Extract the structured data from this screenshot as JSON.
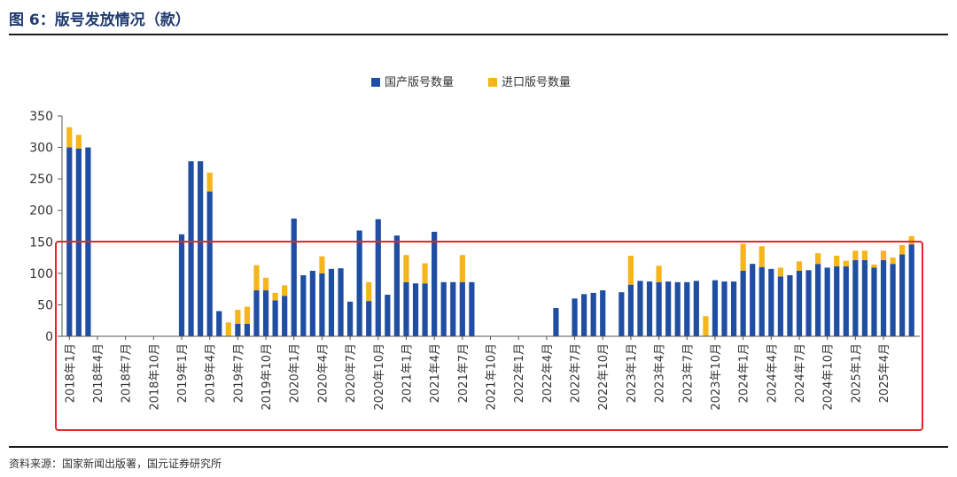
{
  "figure_title": "图 6：版号发放情况（款）",
  "source_text": "资料来源：国家新闻出版署，国元证券研究所",
  "colors": {
    "domestic": "#1f4ea3",
    "imported": "#f5b51b",
    "highlight": "#e3262b",
    "axis": "#555555"
  },
  "chart_data": {
    "type": "bar",
    "stacked": true,
    "ylim": [
      0,
      350
    ],
    "yticks": [
      0,
      50,
      100,
      150,
      200,
      250,
      300,
      350
    ],
    "legend_position": "top-center",
    "grid": false,
    "tick_labels": [
      "2018年1月",
      "2018年4月",
      "2018年7月",
      "2018年10月",
      "2019年1月",
      "2019年4月",
      "2019年7月",
      "2019年10月",
      "2020年1月",
      "2020年4月",
      "2020年7月",
      "2020年10月",
      "2021年1月",
      "2021年4月",
      "2021年7月",
      "2021年10月",
      "2022年1月",
      "2022年4月",
      "2022年7月",
      "2022年10月",
      "2023年1月",
      "2023年4月",
      "2023年7月",
      "2023年10月",
      "2024年1月",
      "2024年4月",
      "2024年7月",
      "2024年10月",
      "2025年1月",
      "2025年4月"
    ],
    "series": [
      {
        "name": "国产版号数量",
        "values": [
          300,
          298,
          300,
          0,
          0,
          0,
          0,
          0,
          0,
          0,
          0,
          0,
          162,
          278,
          278,
          230,
          40,
          0,
          20,
          20,
          73,
          73,
          57,
          64,
          187,
          97,
          104,
          100,
          107,
          108,
          55,
          168,
          56,
          186,
          66,
          160,
          86,
          84,
          84,
          166,
          86,
          86,
          86,
          86,
          0,
          0,
          0,
          0,
          0,
          0,
          0,
          0,
          45,
          0,
          60,
          67,
          69,
          73,
          0,
          70,
          82,
          88,
          87,
          86,
          87,
          86,
          86,
          88,
          0,
          89,
          87,
          87,
          104,
          115,
          110,
          107,
          95,
          97,
          104,
          105,
          115,
          109,
          111,
          111,
          121,
          121,
          109,
          121,
          115,
          130,
          146
        ]
      },
      {
        "name": "进口版号数量",
        "values": [
          32,
          22,
          0,
          0,
          0,
          0,
          0,
          0,
          0,
          0,
          0,
          0,
          0,
          0,
          0,
          30,
          0,
          22,
          22,
          27,
          40,
          20,
          12,
          17,
          0,
          0,
          0,
          27,
          0,
          0,
          0,
          0,
          30,
          0,
          0,
          0,
          43,
          0,
          32,
          0,
          0,
          0,
          43,
          0,
          0,
          0,
          0,
          0,
          0,
          0,
          0,
          0,
          0,
          0,
          0,
          0,
          0,
          0,
          0,
          0,
          46,
          0,
          0,
          26,
          0,
          0,
          0,
          0,
          32,
          0,
          0,
          0,
          43,
          0,
          33,
          0,
          14,
          0,
          15,
          0,
          17,
          0,
          17,
          9,
          15,
          15,
          5,
          15,
          10,
          15,
          13
        ]
      }
    ]
  }
}
